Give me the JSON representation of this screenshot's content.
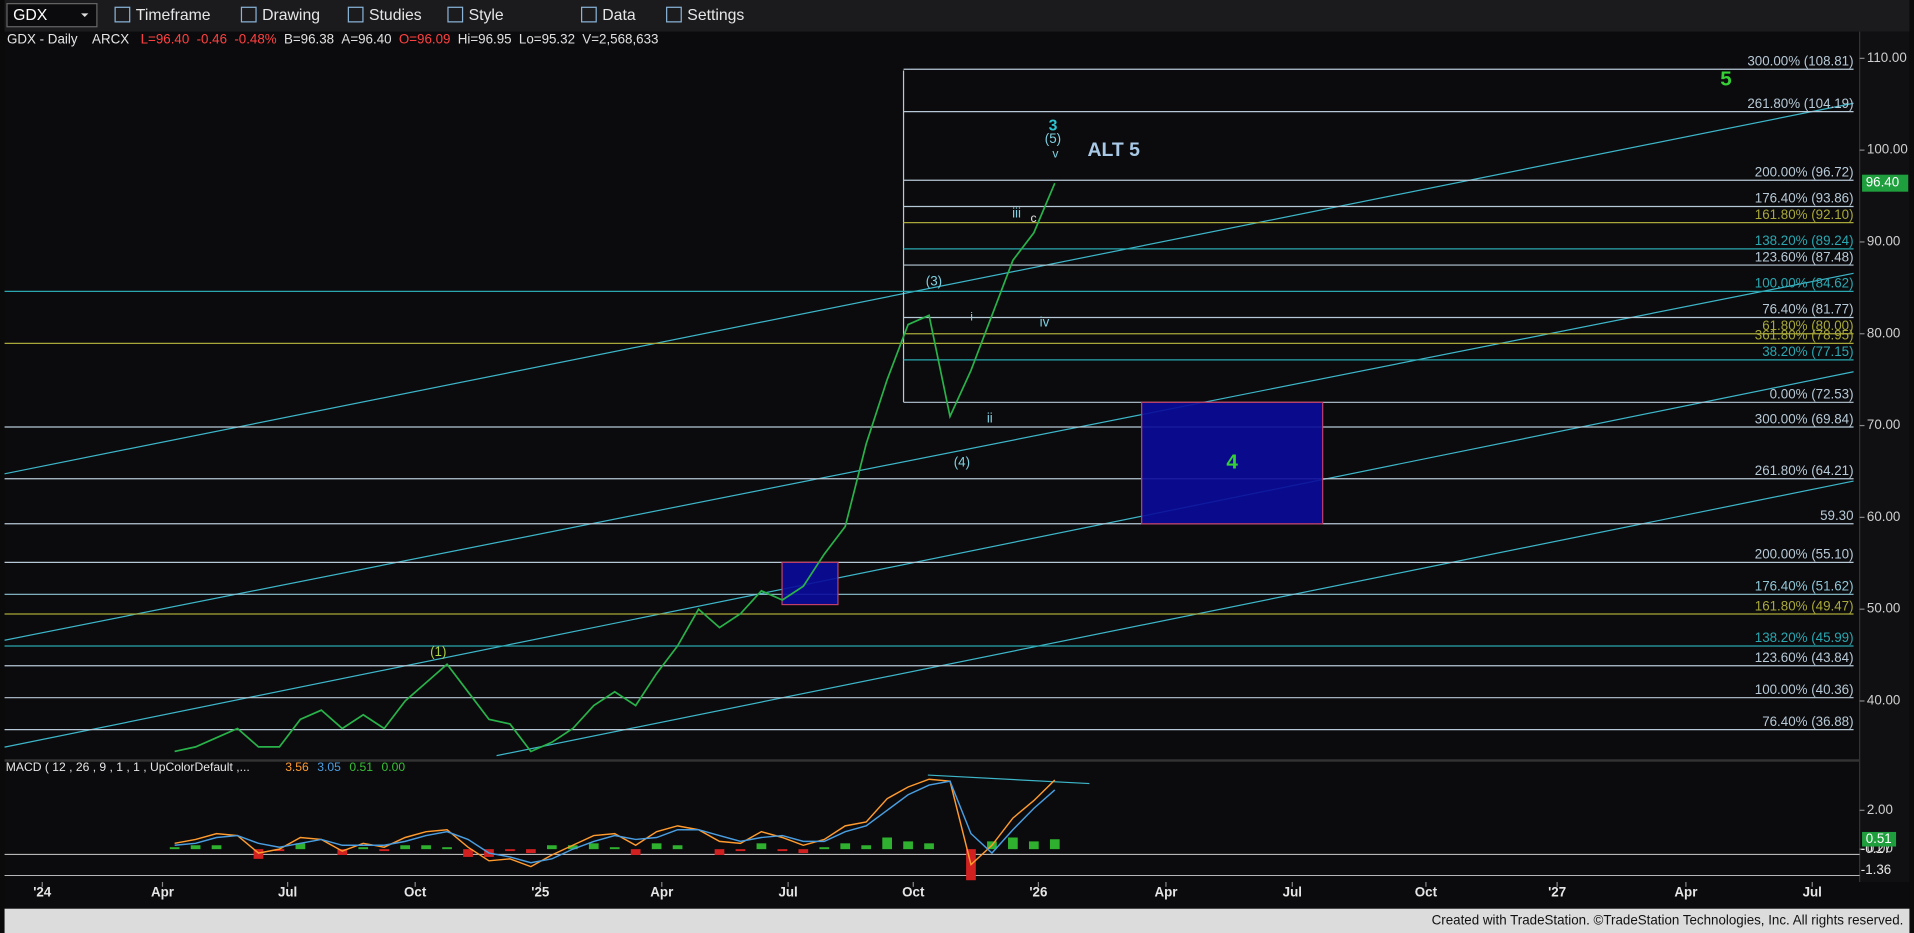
{
  "toolbar": {
    "symbol": "GDX",
    "items": [
      "Timeframe",
      "Drawing",
      "Studies",
      "Style",
      "Data",
      "Settings"
    ]
  },
  "info": {
    "title": "GDX - Daily",
    "exchange": "ARCX",
    "quote": [
      {
        "text": "L=96.40",
        "color": "#ff4040"
      },
      {
        "text": "-0.46",
        "color": "#ff4040"
      },
      {
        "text": "-0.48%",
        "color": "#ff4040"
      },
      {
        "text": "B=96.38",
        "color": "#e0e0e0"
      },
      {
        "text": "A=96.40",
        "color": "#e0e0e0"
      },
      {
        "text": "O=96.09",
        "color": "#ff4040"
      },
      {
        "text": "Hi=96.95",
        "color": "#e0e0e0"
      },
      {
        "text": "Lo=95.32",
        "color": "#e0e0e0"
      },
      {
        "text": "V=2,568,633",
        "color": "#e0e0e0"
      }
    ]
  },
  "chart_data": {
    "type": "line",
    "color": "#29b24a",
    "time_labels": [
      "'24",
      "Apr",
      "Jul",
      "Oct",
      "'25",
      "Apr",
      "Jul",
      "Oct",
      "'26",
      "Apr",
      "Jul",
      "Oct",
      "'27",
      "Apr",
      "Jul"
    ],
    "values": [
      34.5,
      35,
      36,
      37,
      35,
      35,
      38,
      39,
      37,
      38.5,
      37,
      40,
      42,
      44,
      41,
      38,
      37.5,
      34.5,
      35.5,
      37,
      39.5,
      41,
      39.5,
      43,
      46,
      50,
      48,
      49.5,
      52,
      51,
      52.5,
      56,
      59,
      68,
      75,
      81,
      82,
      71,
      76,
      82,
      88,
      91,
      96.4
    ],
    "last": {
      "value": 96.4,
      "label": "96.40"
    },
    "ylim": [
      33.65,
      111.06
    ],
    "yticks": [
      {
        "value": 110,
        "label": "110.00"
      },
      {
        "value": 100,
        "label": "100.00"
      },
      {
        "value": 90,
        "label": "90.00"
      },
      {
        "value": 80,
        "label": "80.00"
      },
      {
        "value": 70,
        "label": "70.00"
      },
      {
        "value": 60,
        "label": "60.00"
      },
      {
        "value": 50,
        "label": "50.00"
      },
      {
        "value": 40,
        "label": "40.00"
      }
    ],
    "levels": [
      {
        "label": "300.00% (108.81)",
        "value": 108.81,
        "color": "#b7c9d6",
        "full_width": false
      },
      {
        "label": "261.80% (104.19)",
        "value": 104.19,
        "color": "#b7c9d6",
        "full_width": false
      },
      {
        "label": "200.00% (96.72)",
        "value": 96.72,
        "color": "#b7c9d6",
        "full_width": false
      },
      {
        "label": "176.40% (93.86)",
        "value": 93.86,
        "color": "#b7c9d6",
        "full_width": false
      },
      {
        "label": "161.80% (92.10)",
        "value": 92.1,
        "color": "#a8a83a",
        "full_width": false
      },
      {
        "label": "138.20% (89.24)",
        "value": 89.24,
        "color": "#2aa7b0",
        "full_width": false
      },
      {
        "label": "123.60% (87.48)",
        "value": 87.48,
        "color": "#b7c9d6",
        "full_width": false
      },
      {
        "label": "100.00% (84.62)",
        "value": 84.62,
        "color": "#2aa7b0",
        "full_width": true
      },
      {
        "label": "76.40% (81.77)",
        "value": 81.77,
        "color": "#b7c9d6",
        "full_width": false
      },
      {
        "label": "61.80% (80.00)",
        "value": 80,
        "color": "#a8a83a",
        "full_width": false
      },
      {
        "label": "361.80% (78.95)",
        "value": 78.95,
        "color": "#a8a83a",
        "full_width": true
      },
      {
        "label": "38.20% (77.15)",
        "value": 77.15,
        "color": "#2aa7b0",
        "full_width": false
      },
      {
        "label": "0.00% (72.53)",
        "value": 72.53,
        "color": "#b7c9d6",
        "full_width": false
      },
      {
        "label": "300.00% (69.84)",
        "value": 69.84,
        "color": "#b7c9d6",
        "full_width": true
      },
      {
        "label": "261.80% (64.21)",
        "value": 64.21,
        "color": "#b7c9d6",
        "full_width": true
      },
      {
        "label": "59.30",
        "value": 59.3,
        "color": "#b7c9d6",
        "full_width": true
      },
      {
        "label": "200.00% (55.10)",
        "value": 55.1,
        "color": "#b7c9d6",
        "full_width": true
      },
      {
        "label": "176.40% (51.62)",
        "value": 51.62,
        "color": "#8fc6d6",
        "full_width": true
      },
      {
        "label": "161.80% (49.47)",
        "value": 49.47,
        "color": "#a8a83a",
        "full_width": true
      },
      {
        "label": "138.20% (45.99)",
        "value": 45.99,
        "color": "#2aa7b0",
        "full_width": true
      },
      {
        "label": "123.60% (43.84)",
        "value": 43.84,
        "color": "#b7c9d6",
        "full_width": true
      },
      {
        "label": "100.00% (40.36)",
        "value": 40.36,
        "color": "#b7c9d6",
        "full_width": true
      },
      {
        "label": "76.40% (36.88)",
        "value": 36.88,
        "color": "#b7c9d6",
        "full_width": true
      }
    ],
    "zones": [
      {
        "label": "4",
        "top": 72.53,
        "bottom": 59.3
      },
      {
        "top": 55.1,
        "bottom": 50.5
      }
    ],
    "annotations": [
      {
        "text": "3",
        "color": "#2ec4d0"
      },
      {
        "text": "(5)",
        "color": "#7fd0e0"
      },
      {
        "text": "v",
        "color": "#7fd0e0"
      },
      {
        "text": "ALT 5",
        "color": "#a9c9e6"
      },
      {
        "text": "5",
        "color": "#35d035"
      },
      {
        "text": "iii",
        "color": "#7fd0e0"
      },
      {
        "text": "c",
        "color": "#e0e0e0"
      },
      {
        "text": "(3)",
        "color": "#7fd0e0"
      },
      {
        "text": "i",
        "color": "#7fd0e0"
      },
      {
        "text": "iv",
        "color": "#7fd0e0"
      },
      {
        "text": "ii",
        "color": "#7fd0e0"
      },
      {
        "text": "(4)",
        "color": "#7fd0e0"
      },
      {
        "text": "(1)",
        "color": "#a8d040"
      }
    ],
    "macd": {
      "title": "MACD ( 12 , 26 , 9 , 1 , 1 , UpColorDefault ,...",
      "readouts": [
        {
          "text": "3.56",
          "color": "#ff9a2e"
        },
        {
          "text": "3.05",
          "color": "#4a9de0"
        },
        {
          "text": "0.51",
          "color": "#35c035"
        },
        {
          "text": "0.00",
          "color": "#35c035"
        }
      ],
      "ylim": [
        -1.44,
        4.44
      ],
      "yticks": [
        {
          "value": 2,
          "label": "2.00"
        },
        {
          "value": 0,
          "label": "0.00"
        }
      ],
      "tags": [
        -0.27,
        -1.36
      ],
      "last_hist": 0.51,
      "series": [
        {
          "name": "MACD",
          "color": "#ff9a2e",
          "values": [
            0.3,
            0.5,
            0.8,
            0.7,
            -0.2,
            0,
            0.6,
            0.5,
            -0.1,
            0.3,
            0.1,
            0.6,
            0.9,
            1.0,
            0.1,
            -0.6,
            -0.5,
            -0.9,
            -0.3,
            0.2,
            0.7,
            0.8,
            0.2,
            0.9,
            1.2,
            1.0,
            0.4,
            0.3,
            0.9,
            0.6,
            0.2,
            0.5,
            1.2,
            1.4,
            2.6,
            3.2,
            3.6,
            3.5,
            -0.8,
            0.2,
            1.6,
            2.5,
            3.56
          ]
        },
        {
          "name": "MACDAvg",
          "color": "#4a9de0",
          "values": [
            0.2,
            0.3,
            0.6,
            0.7,
            0.3,
            0.1,
            0.3,
            0.5,
            0.2,
            0.2,
            0.2,
            0.4,
            0.7,
            0.9,
            0.5,
            -0.2,
            -0.4,
            -0.7,
            -0.5,
            0,
            0.4,
            0.7,
            0.5,
            0.6,
            1.0,
            1.0,
            0.7,
            0.4,
            0.6,
            0.7,
            0.4,
            0.4,
            0.9,
            1.2,
            2.0,
            2.8,
            3.3,
            3.5,
            0.8,
            -0.2,
            1.0,
            2.1,
            3.05
          ]
        }
      ],
      "histogram": [
        0.1,
        0.2,
        0.2,
        0,
        -0.5,
        -0.1,
        0.3,
        0,
        -0.3,
        0.1,
        -0.1,
        0.2,
        0.2,
        0.1,
        -0.4,
        -0.4,
        -0.1,
        -0.2,
        0.2,
        0.2,
        0.3,
        0.1,
        -0.3,
        0.3,
        0.2,
        0,
        -0.3,
        -0.1,
        0.3,
        -0.1,
        -0.2,
        0.1,
        0.3,
        0.2,
        0.6,
        0.4,
        0.3,
        0,
        -1.6,
        0.4,
        0.6,
        0.4,
        0.51
      ]
    }
  },
  "footer": "Created with TradeStation. ©TradeStation Technologies, Inc. All rights reserved."
}
